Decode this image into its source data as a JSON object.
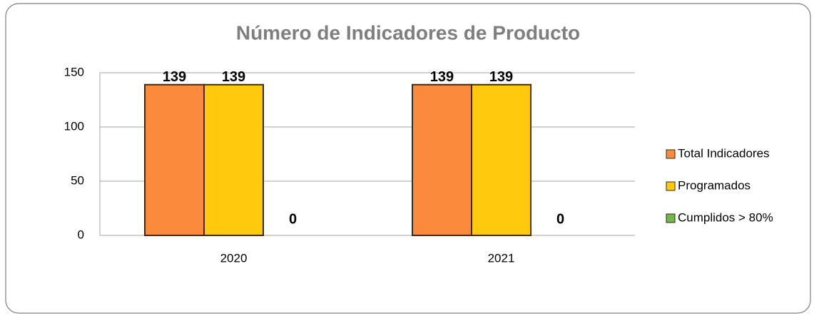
{
  "chart_data": {
    "type": "bar",
    "title": "Número de Indicadores de Producto",
    "categories": [
      "2020",
      "2021"
    ],
    "series": [
      {
        "name": "Total Indicadores",
        "color": "#fb8a3c",
        "values": [
          139,
          139
        ]
      },
      {
        "name": "Programados",
        "color": "#ffc90e",
        "values": [
          139,
          139
        ]
      },
      {
        "name": "Cumplidos > 80%",
        "color": "#70b84a",
        "values": [
          0,
          0
        ]
      }
    ],
    "ylim": [
      0,
      150
    ],
    "yticks": [
      0,
      50,
      100,
      150
    ],
    "grid": true,
    "legend": "right"
  }
}
